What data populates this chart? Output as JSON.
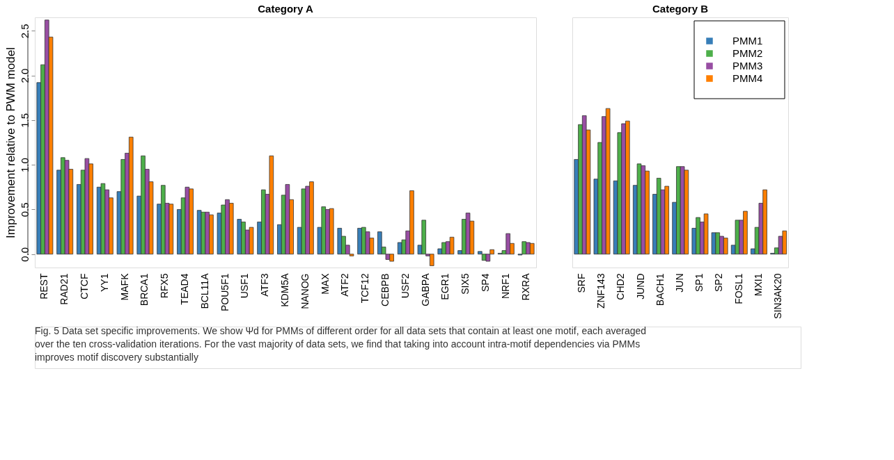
{
  "chart_data": [
    {
      "type": "bar",
      "title": "Category A",
      "ylabel": "Improvement relative to PWM model",
      "ylim": [
        -0.15,
        2.65
      ],
      "yticks": [
        {
          "value": 0,
          "label": "0.0"
        },
        0.5,
        {
          "value": 1,
          "label": "1.0"
        },
        1.5,
        {
          "value": 2,
          "label": "2.0"
        },
        2.5
      ],
      "grid": false,
      "legend": false,
      "categories": [
        "REST",
        "RAD21",
        "CTCF",
        "YY1",
        "MAFK",
        "BRCA1",
        "RFX5",
        "TEAD4",
        "BCL11A",
        "POU5F1",
        "USF1",
        "ATF3",
        "KDM5A",
        "NANOG",
        "MAX",
        "ATF2",
        "TCF12",
        "CEBPB",
        "USF2",
        "GABPA",
        "EGR1",
        "SIX5",
        "SP4",
        "NRF1",
        "RXRA"
      ],
      "series": [
        {
          "color": "#377eb8",
          "values": [
            1.92,
            0.94,
            0.78,
            0.75,
            0.7,
            0.65,
            0.56,
            0.5,
            0.49,
            0.46,
            0.39,
            0.36,
            0.33,
            0.3,
            0.3,
            0.29,
            0.29,
            0.25,
            0.13,
            0.1,
            0.06,
            0.04,
            0.03,
            0.01,
            -0.01
          ]
        },
        {
          "color": "#4daf4a",
          "values": [
            2.12,
            1.08,
            0.94,
            0.79,
            1.06,
            1.1,
            0.77,
            0.63,
            0.47,
            0.55,
            0.36,
            0.72,
            0.66,
            0.73,
            0.53,
            0.2,
            0.3,
            0.08,
            0.16,
            0.38,
            0.13,
            0.39,
            -0.07,
            0.04,
            0.14
          ]
        },
        {
          "color": "#984ea3",
          "values": [
            2.62,
            1.05,
            1.07,
            0.72,
            1.13,
            0.95,
            0.57,
            0.75,
            0.47,
            0.61,
            0.27,
            0.67,
            0.78,
            0.76,
            0.5,
            0.1,
            0.25,
            -0.06,
            0.26,
            -0.02,
            0.14,
            0.46,
            -0.08,
            0.23,
            0.13
          ]
        },
        {
          "color": "#ff7f00",
          "values": [
            2.43,
            0.95,
            1.01,
            0.63,
            1.31,
            0.81,
            0.56,
            0.73,
            0.44,
            0.57,
            0.3,
            1.1,
            0.61,
            0.81,
            0.51,
            -0.02,
            0.18,
            -0.08,
            0.71,
            -0.13,
            0.19,
            0.37,
            0.05,
            0.12,
            0.12
          ]
        }
      ],
      "annotations": [
        "Fig. 5 Data set specific improvements. We show Ψd for PMMs of different order for all data sets that contain at least one motif, each averaged over the ten cross-validation iterations. For the vast majority of data sets, we find that taking into account intra-motif dependencies via PMMs improves motif discovery substantially"
      ]
    },
    {
      "type": "bar",
      "title": "Category B",
      "ylim": [
        -0.15,
        2.65
      ],
      "tick_labels": "x",
      "grid": false,
      "legend": "top right",
      "categories": [
        "SRF",
        "ZNF143",
        "CHD2",
        "JUND",
        "BACH1",
        "JUN",
        "SP1",
        "SP2",
        "FOSL1",
        "MXI1",
        "SIN3AK20"
      ],
      "series": [
        {
          "name": "PMM1",
          "color": "#377eb8",
          "values": [
            1.06,
            0.84,
            0.82,
            0.77,
            0.67,
            0.58,
            0.29,
            0.24,
            0.1,
            0.06,
            0.01
          ]
        },
        {
          "name": "PMM2",
          "color": "#4daf4a",
          "values": [
            1.45,
            1.25,
            1.36,
            1.01,
            0.85,
            0.98,
            0.41,
            0.24,
            0.38,
            0.3,
            0.07
          ]
        },
        {
          "name": "PMM3",
          "color": "#984ea3",
          "values": [
            1.55,
            1.54,
            1.46,
            0.99,
            0.72,
            0.98,
            0.36,
            0.2,
            0.38,
            0.57,
            0.2
          ]
        },
        {
          "name": "PMM4",
          "color": "#ff7f00",
          "values": [
            1.39,
            1.63,
            1.49,
            0.93,
            0.76,
            0.94,
            0.45,
            0.18,
            0.48,
            0.72,
            0.26
          ]
        }
      ]
    }
  ]
}
